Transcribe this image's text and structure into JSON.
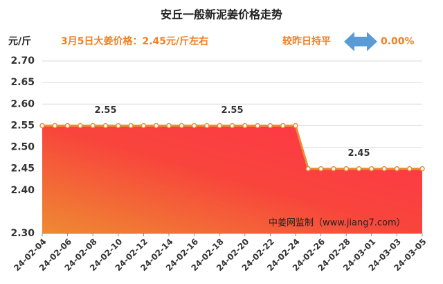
{
  "chart_data": {
    "type": "area",
    "title": "安丘一般新泥姜价格走势",
    "y_unit": "元/斤",
    "headline": "3月5日大姜价格：2.45元/斤左右",
    "change_text": "较昨日持平",
    "change_value": "0.00%",
    "watermark": "中姜网监制（www.jiang7.com）",
    "categories": [
      "24-02-04",
      null,
      "24-02-06",
      null,
      "24-02-08",
      null,
      "24-02-10",
      null,
      "24-02-12",
      null,
      "24-02-14",
      null,
      "24-02-16",
      null,
      "24-02-18",
      null,
      "24-02-20",
      null,
      "24-02-22",
      null,
      "24-02-24",
      null,
      "24-02-26",
      null,
      "24-02-28",
      null,
      "24-03-01",
      null,
      "24-03-03",
      null,
      "24-03-05"
    ],
    "series": [
      {
        "color": "#ec8c34",
        "values": [
          2.55,
          2.55,
          2.55,
          2.55,
          2.55,
          2.55,
          2.55,
          2.55,
          2.55,
          2.55,
          2.55,
          2.55,
          2.55,
          2.55,
          2.55,
          2.55,
          2.55,
          2.55,
          2.55,
          2.55,
          2.55,
          2.45,
          2.45,
          2.45,
          2.45,
          2.45,
          2.45,
          2.45,
          2.45,
          2.45,
          2.45
        ],
        "value_labels": [
          null,
          null,
          null,
          null,
          null,
          "2.55",
          null,
          null,
          null,
          null,
          null,
          null,
          null,
          null,
          null,
          "2.55",
          null,
          null,
          null,
          null,
          null,
          null,
          null,
          null,
          null,
          "2.45",
          null,
          null,
          null,
          null,
          null
        ]
      }
    ],
    "ylim": [
      2.3,
      2.7
    ],
    "yticks": [
      {
        "value": 2.3,
        "label": "2.30"
      },
      {
        "value": 2.4,
        "label": "2.40"
      },
      2.45,
      {
        "value": 2.5,
        "label": "2.50"
      },
      2.55,
      {
        "value": 2.6,
        "label": "2.60"
      },
      2.65,
      {
        "value": 2.7,
        "label": "2.70"
      }
    ],
    "grid": true
  }
}
